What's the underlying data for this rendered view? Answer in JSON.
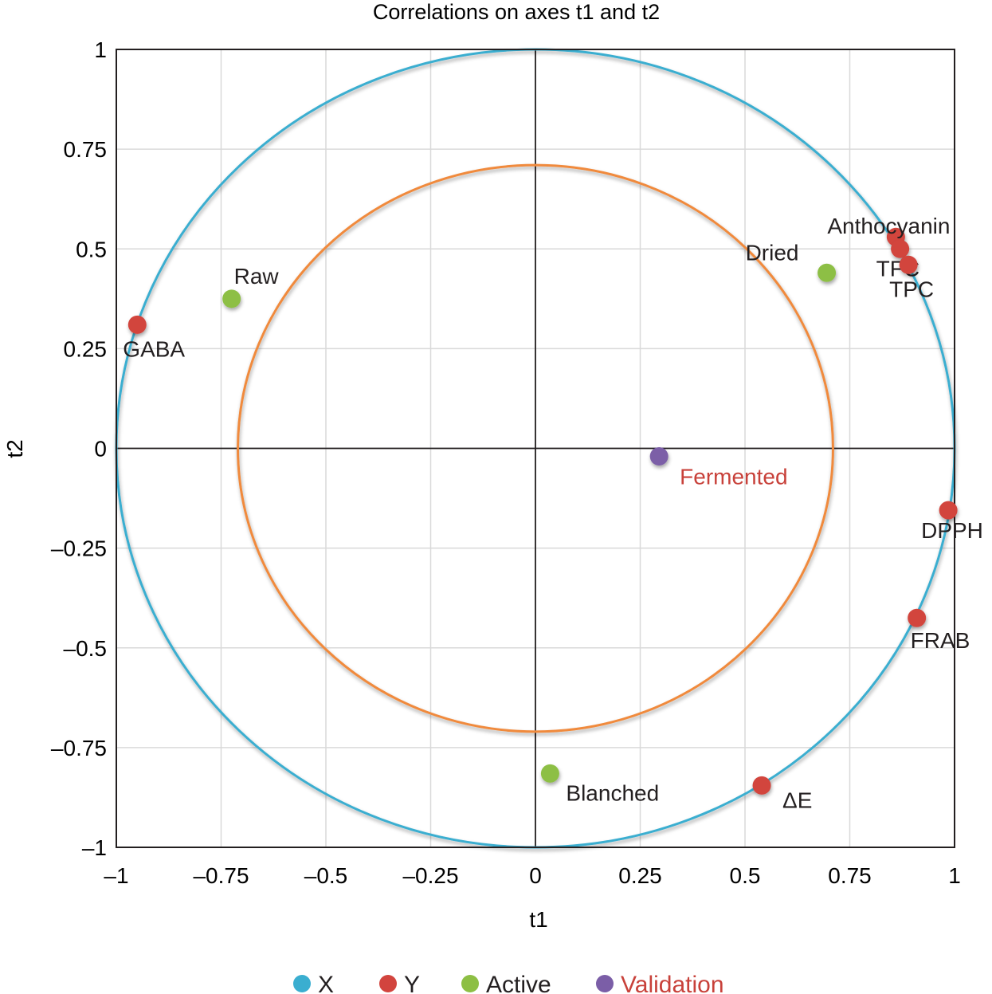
{
  "chart_data": {
    "type": "scatter",
    "title": "Correlations on axes t1 and t2",
    "xlabel": "t1",
    "ylabel": "t2",
    "xlim": [
      -1,
      1
    ],
    "ylim": [
      -1,
      1
    ],
    "grid": true,
    "xticks": [
      -1,
      -0.75,
      -0.5,
      -0.25,
      0,
      0.25,
      0.5,
      0.75,
      1
    ],
    "yticks": [
      -1,
      -0.75,
      -0.5,
      -0.25,
      0,
      0.25,
      0.5,
      0.75,
      1
    ],
    "xtick_labels": [
      "–1",
      "–0.75",
      "–0.5",
      "–0.25",
      "0",
      "0.25",
      "0.5",
      "0.75",
      "1"
    ],
    "ytick_labels": [
      "–1",
      "–0.75",
      "–0.5",
      "–0.25",
      "0",
      "0.25",
      "0.5",
      "0.75",
      "1"
    ],
    "circles": [
      {
        "name": "outer-correlation-circle",
        "radius": 1.0,
        "color": "#3aaed0"
      },
      {
        "name": "inner-correlation-circle",
        "radius": 0.71,
        "color": "#f08a3c"
      }
    ],
    "legend": {
      "placement": "bottom",
      "entries": [
        {
          "label": "X",
          "color": "#3aaed0",
          "text_color": "#231f20"
        },
        {
          "label": "Y",
          "color": "#d2443e",
          "text_color": "#231f20"
        },
        {
          "label": "Active",
          "color": "#8dbf44",
          "text_color": "#231f20"
        },
        {
          "label": "Validation",
          "color": "#7b5ea7",
          "text_color": "#c8413a"
        }
      ]
    },
    "series": [
      {
        "name": "Y",
        "color": "#d2443e",
        "points": [
          {
            "label": "GABA",
            "x": -0.95,
            "y": 0.31
          },
          {
            "label": "Anthocyanin",
            "x": 0.86,
            "y": 0.53
          },
          {
            "label": "TFC",
            "x": 0.87,
            "y": 0.5
          },
          {
            "label": "TPC",
            "x": 0.89,
            "y": 0.46
          },
          {
            "label": "DPPH",
            "x": 0.985,
            "y": -0.155
          },
          {
            "label": "FRAB",
            "x": 0.91,
            "y": -0.425
          },
          {
            "label": "ΔE",
            "x": 0.54,
            "y": -0.845
          }
        ]
      },
      {
        "name": "Active",
        "color": "#8dbf44",
        "points": [
          {
            "label": "Raw",
            "x": -0.725,
            "y": 0.375
          },
          {
            "label": "Dried",
            "x": 0.695,
            "y": 0.44
          },
          {
            "label": "Blanched",
            "x": 0.035,
            "y": -0.815
          }
        ]
      },
      {
        "name": "Validation",
        "color": "#7b5ea7",
        "label_color": "#c8413a",
        "points": [
          {
            "label": "Fermented",
            "x": 0.295,
            "y": -0.02
          }
        ]
      }
    ]
  }
}
